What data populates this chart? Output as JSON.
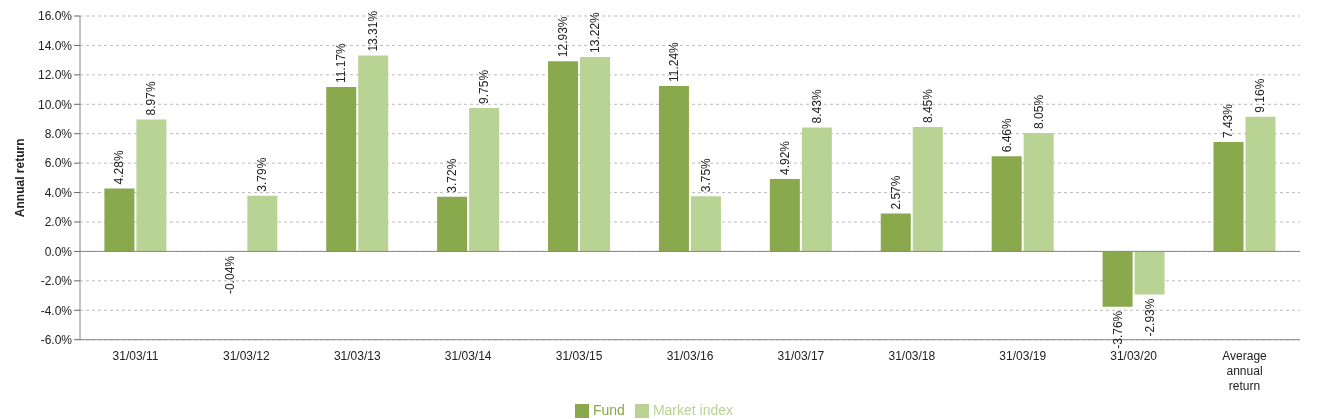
{
  "chart_data": {
    "type": "bar",
    "ylabel": "Annual return",
    "categories": [
      "31/03/11",
      "31/03/12",
      "31/03/13",
      "31/03/14",
      "31/03/15",
      "31/03/16",
      "31/03/17",
      "31/03/18",
      "31/03/19",
      "31/03/20",
      "Average annual return"
    ],
    "series": [
      {
        "name": "Fund",
        "color": "#8aa84c",
        "values": [
          4.28,
          -0.04,
          11.17,
          3.72,
          12.93,
          11.24,
          4.92,
          2.57,
          6.46,
          -3.76,
          7.43
        ],
        "value_labels": [
          "4.28%",
          "-0.04%",
          "11.17%",
          "3.72%",
          "12.93%",
          "11.24%",
          "4.92%",
          "2.57%",
          "6.46%",
          "-3.76%",
          "7.43%"
        ]
      },
      {
        "name": "Market index",
        "color": "#b9d394",
        "values": [
          8.97,
          3.79,
          13.31,
          9.75,
          13.22,
          3.75,
          8.43,
          8.45,
          8.05,
          -2.93,
          9.16
        ],
        "value_labels": [
          "8.97%",
          "3.79%",
          "13.31%",
          "9.75%",
          "13.22%",
          "3.75%",
          "8.43%",
          "8.45%",
          "8.05%",
          "-2.93%",
          "9.16%"
        ]
      }
    ],
    "ylim": [
      -6,
      16
    ],
    "yticks": [
      {
        "value": -6,
        "label": "-6.0%"
      },
      {
        "value": -4,
        "label": "-4.0%"
      },
      {
        "value": -2,
        "label": "-2.0%"
      },
      {
        "value": 0,
        "label": "0.0%"
      },
      {
        "value": 2,
        "label": "2.0%"
      },
      {
        "value": 4,
        "label": "4.0%"
      },
      {
        "value": 6,
        "label": "6.0%"
      },
      {
        "value": 8,
        "label": "8.0%"
      },
      {
        "value": 10,
        "label": "10.0%"
      },
      {
        "value": 12,
        "label": "12.0%"
      },
      {
        "value": 14,
        "label": "14.0%"
      },
      {
        "value": 16,
        "label": "16.0%"
      }
    ],
    "grid": "y",
    "legend": "bottom"
  }
}
